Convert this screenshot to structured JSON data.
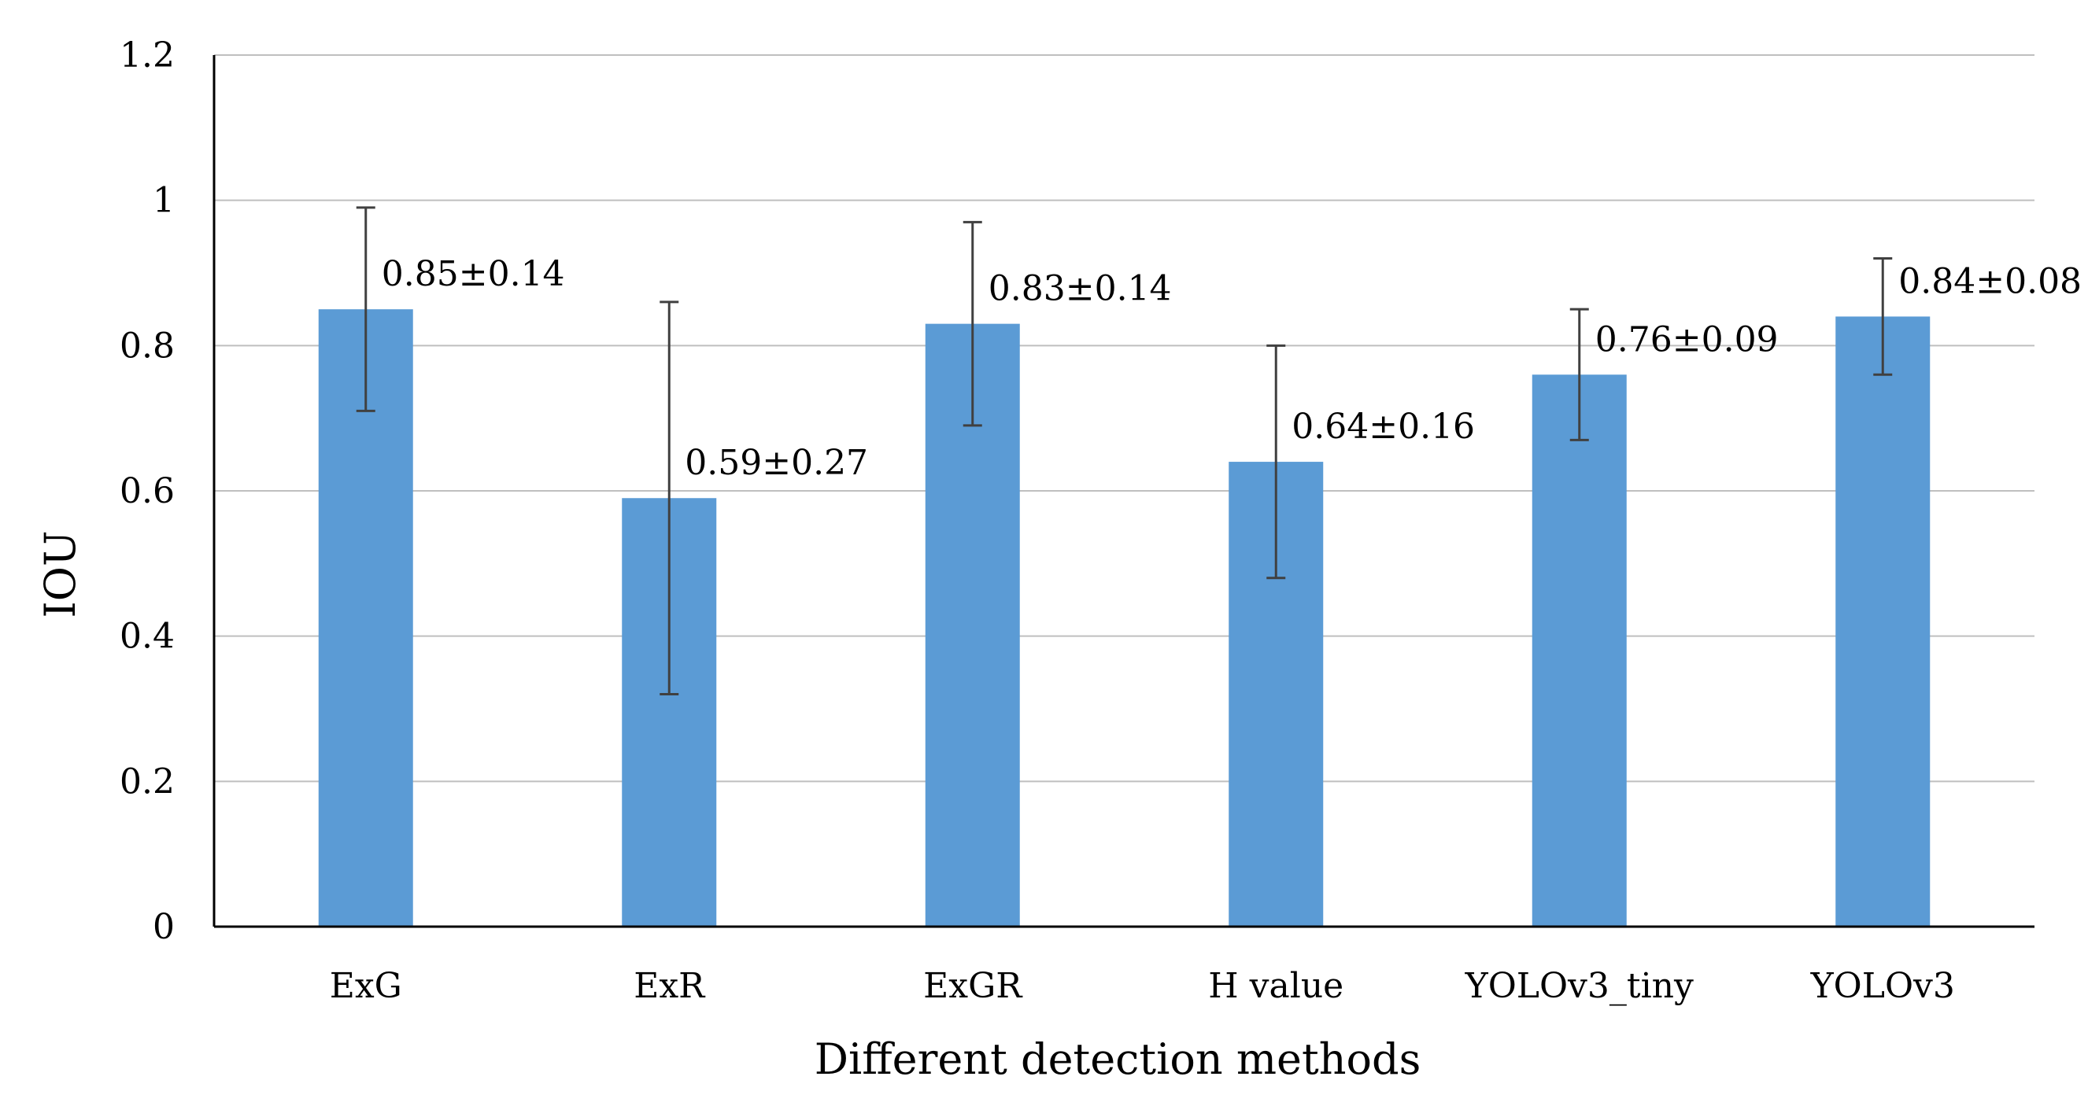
{
  "chart_data": {
    "type": "bar",
    "title": "",
    "xlabel": "Different detection methods",
    "ylabel": "IOU",
    "ylim": [
      0,
      1.2
    ],
    "yticks": [
      0,
      0.2,
      0.4,
      0.6,
      0.8,
      1,
      1.2
    ],
    "ytick_labels": [
      "0",
      "0.2",
      "0.4",
      "0.6",
      "0.8",
      "1",
      "1.2"
    ],
    "grid": true,
    "legend": "none",
    "categories": [
      "ExG",
      "ExR",
      "ExGR",
      "H value",
      "YOLOv3_tiny",
      "YOLOv3"
    ],
    "values": [
      0.85,
      0.59,
      0.83,
      0.64,
      0.76,
      0.84
    ],
    "errors": [
      0.14,
      0.27,
      0.14,
      0.16,
      0.09,
      0.08
    ],
    "data_labels": [
      "0.85±0.14",
      "0.59±0.27",
      "0.83±0.14",
      "0.64±0.16",
      "0.76±0.09",
      "0.84±0.08"
    ],
    "colors": {
      "bar": "#5b9bd5",
      "error_bar": "#404040",
      "grid": "#bfbfbf",
      "axis": "#000000"
    }
  }
}
